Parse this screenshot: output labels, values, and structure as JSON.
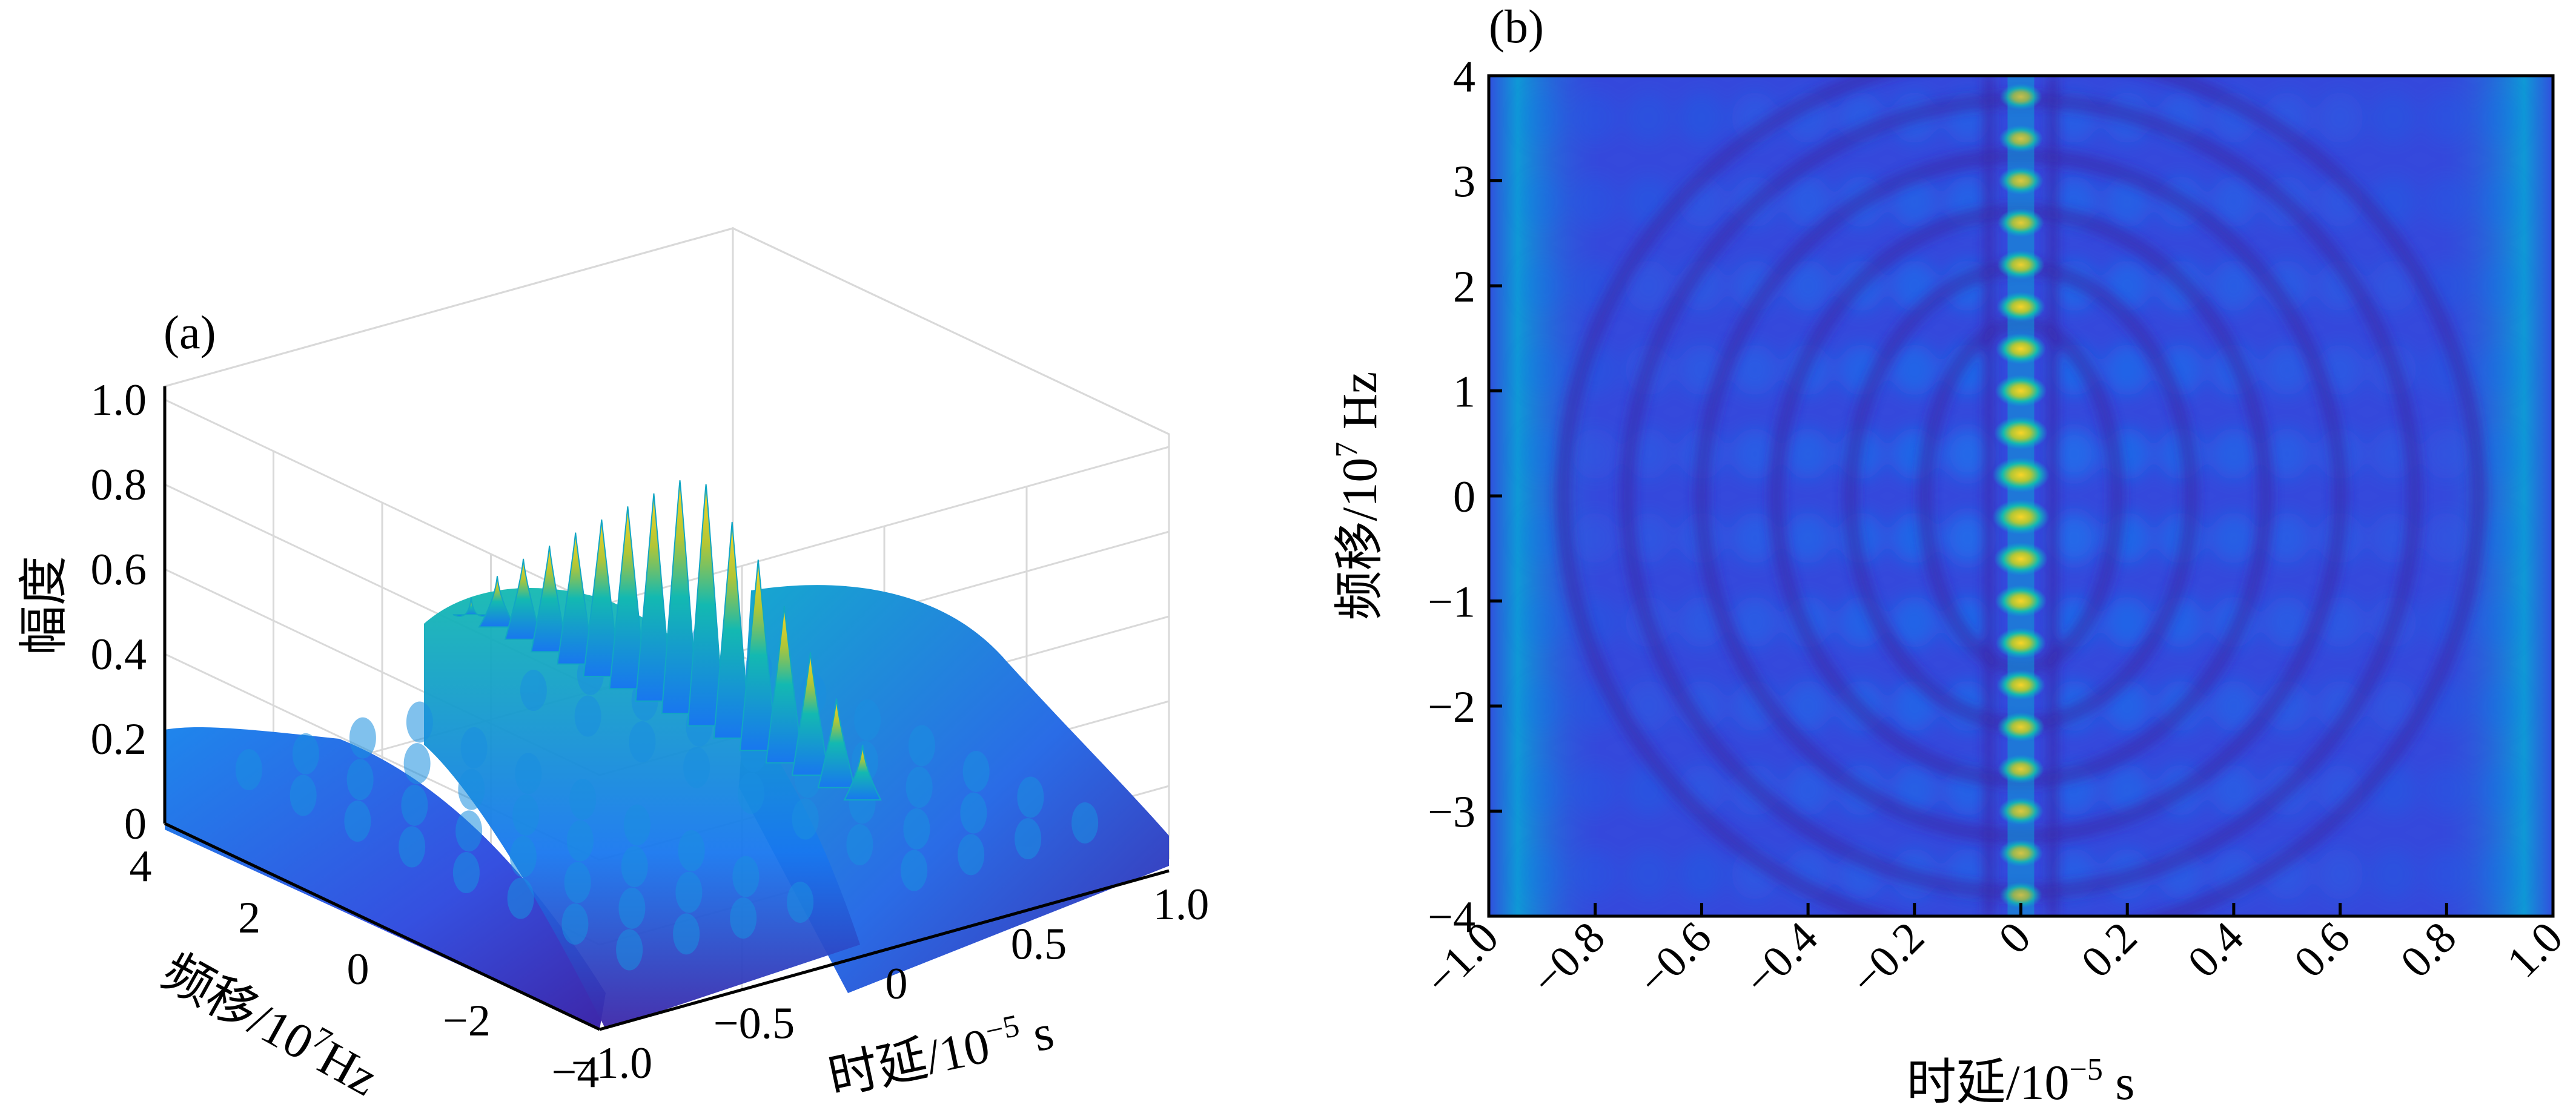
{
  "chart_data": [
    {
      "panel": "(a)",
      "type": "surface3d",
      "xlabel": "时延/10",
      "xlabel_exp": "−5",
      "xlabel_unit": " s",
      "ylabel": "频移/10",
      "ylabel_exp": "7",
      "ylabel_unit": "Hz",
      "zlabel": "幅度",
      "xlim": [
        -1.0,
        1.0
      ],
      "ylim": [
        -4,
        4
      ],
      "zlim": [
        0,
        1.0
      ],
      "x_ticks": [
        "−1.0",
        "−0.5",
        "0",
        "0.5",
        "1.0"
      ],
      "x_tick_values": [
        -1.0,
        -0.5,
        0,
        0.5,
        1.0
      ],
      "y_ticks": [
        "4",
        "2",
        "0",
        "−2",
        "−4"
      ],
      "y_tick_values": [
        4,
        2,
        0,
        -2,
        -4
      ],
      "z_ticks": [
        "0",
        "0.2",
        "0.4",
        "0.6",
        "0.8",
        "1.0"
      ],
      "z_tick_values": [
        0,
        0.2,
        0.4,
        0.6,
        0.8,
        1.0
      ],
      "peak": {
        "x": 0,
        "y": 0,
        "z": 0.9
      },
      "ridge_values": [
        0.37,
        0.45,
        0.52,
        0.58,
        0.64,
        0.7,
        0.76,
        0.82,
        0.88,
        0.9,
        0.84,
        0.78,
        0.7,
        0.62,
        0.54,
        0.46
      ],
      "colormap": [
        "#3d26a8",
        "#2f4ad9",
        "#1877ef",
        "#0d9dd6",
        "#13b9b1",
        "#52c76e",
        "#b3c635",
        "#f9d527"
      ]
    },
    {
      "panel": "(b)",
      "type": "heatmap",
      "xlabel": "时延/10",
      "xlabel_exp": "−5",
      "xlabel_unit": " s",
      "ylabel": "频移/10",
      "ylabel_exp": "7",
      "ylabel_unit": " Hz",
      "xlim": [
        -1.0,
        1.0
      ],
      "ylim": [
        -4,
        4
      ],
      "x_ticks": [
        "−1.0",
        "−0.8",
        "−0.6",
        "−0.4",
        "−0.2",
        "0",
        "0.2",
        "0.4",
        "0.6",
        "0.8",
        "1.0"
      ],
      "x_tick_values": [
        -1.0,
        -0.8,
        -0.6,
        -0.4,
        -0.2,
        0,
        0.2,
        0.4,
        0.6,
        0.8,
        1.0
      ],
      "y_ticks": [
        "4",
        "3",
        "2",
        "1",
        "0",
        "−1",
        "−2",
        "−3",
        "−4"
      ],
      "y_tick_values": [
        4,
        3,
        2,
        1,
        0,
        -1,
        -2,
        -3,
        -4
      ],
      "peak_centers_y": [
        -3.8,
        -3.4,
        -3.0,
        -2.6,
        -2.2,
        -1.8,
        -1.4,
        -1.0,
        -0.6,
        -0.2,
        0.2,
        0.6,
        1.0,
        1.4,
        1.8,
        2.2,
        2.6,
        3.0,
        3.4,
        3.8
      ],
      "peak_values": [
        0.42,
        0.48,
        0.52,
        0.56,
        0.6,
        0.64,
        0.7,
        0.76,
        0.84,
        0.96,
        0.96,
        0.84,
        0.76,
        0.7,
        0.64,
        0.6,
        0.56,
        0.52,
        0.48,
        0.42
      ],
      "colormap": [
        "#3d26a8",
        "#2f4ad9",
        "#1877ef",
        "#0d9dd6",
        "#13b9b1",
        "#52c76e",
        "#b3c635",
        "#f9d527"
      ]
    }
  ]
}
